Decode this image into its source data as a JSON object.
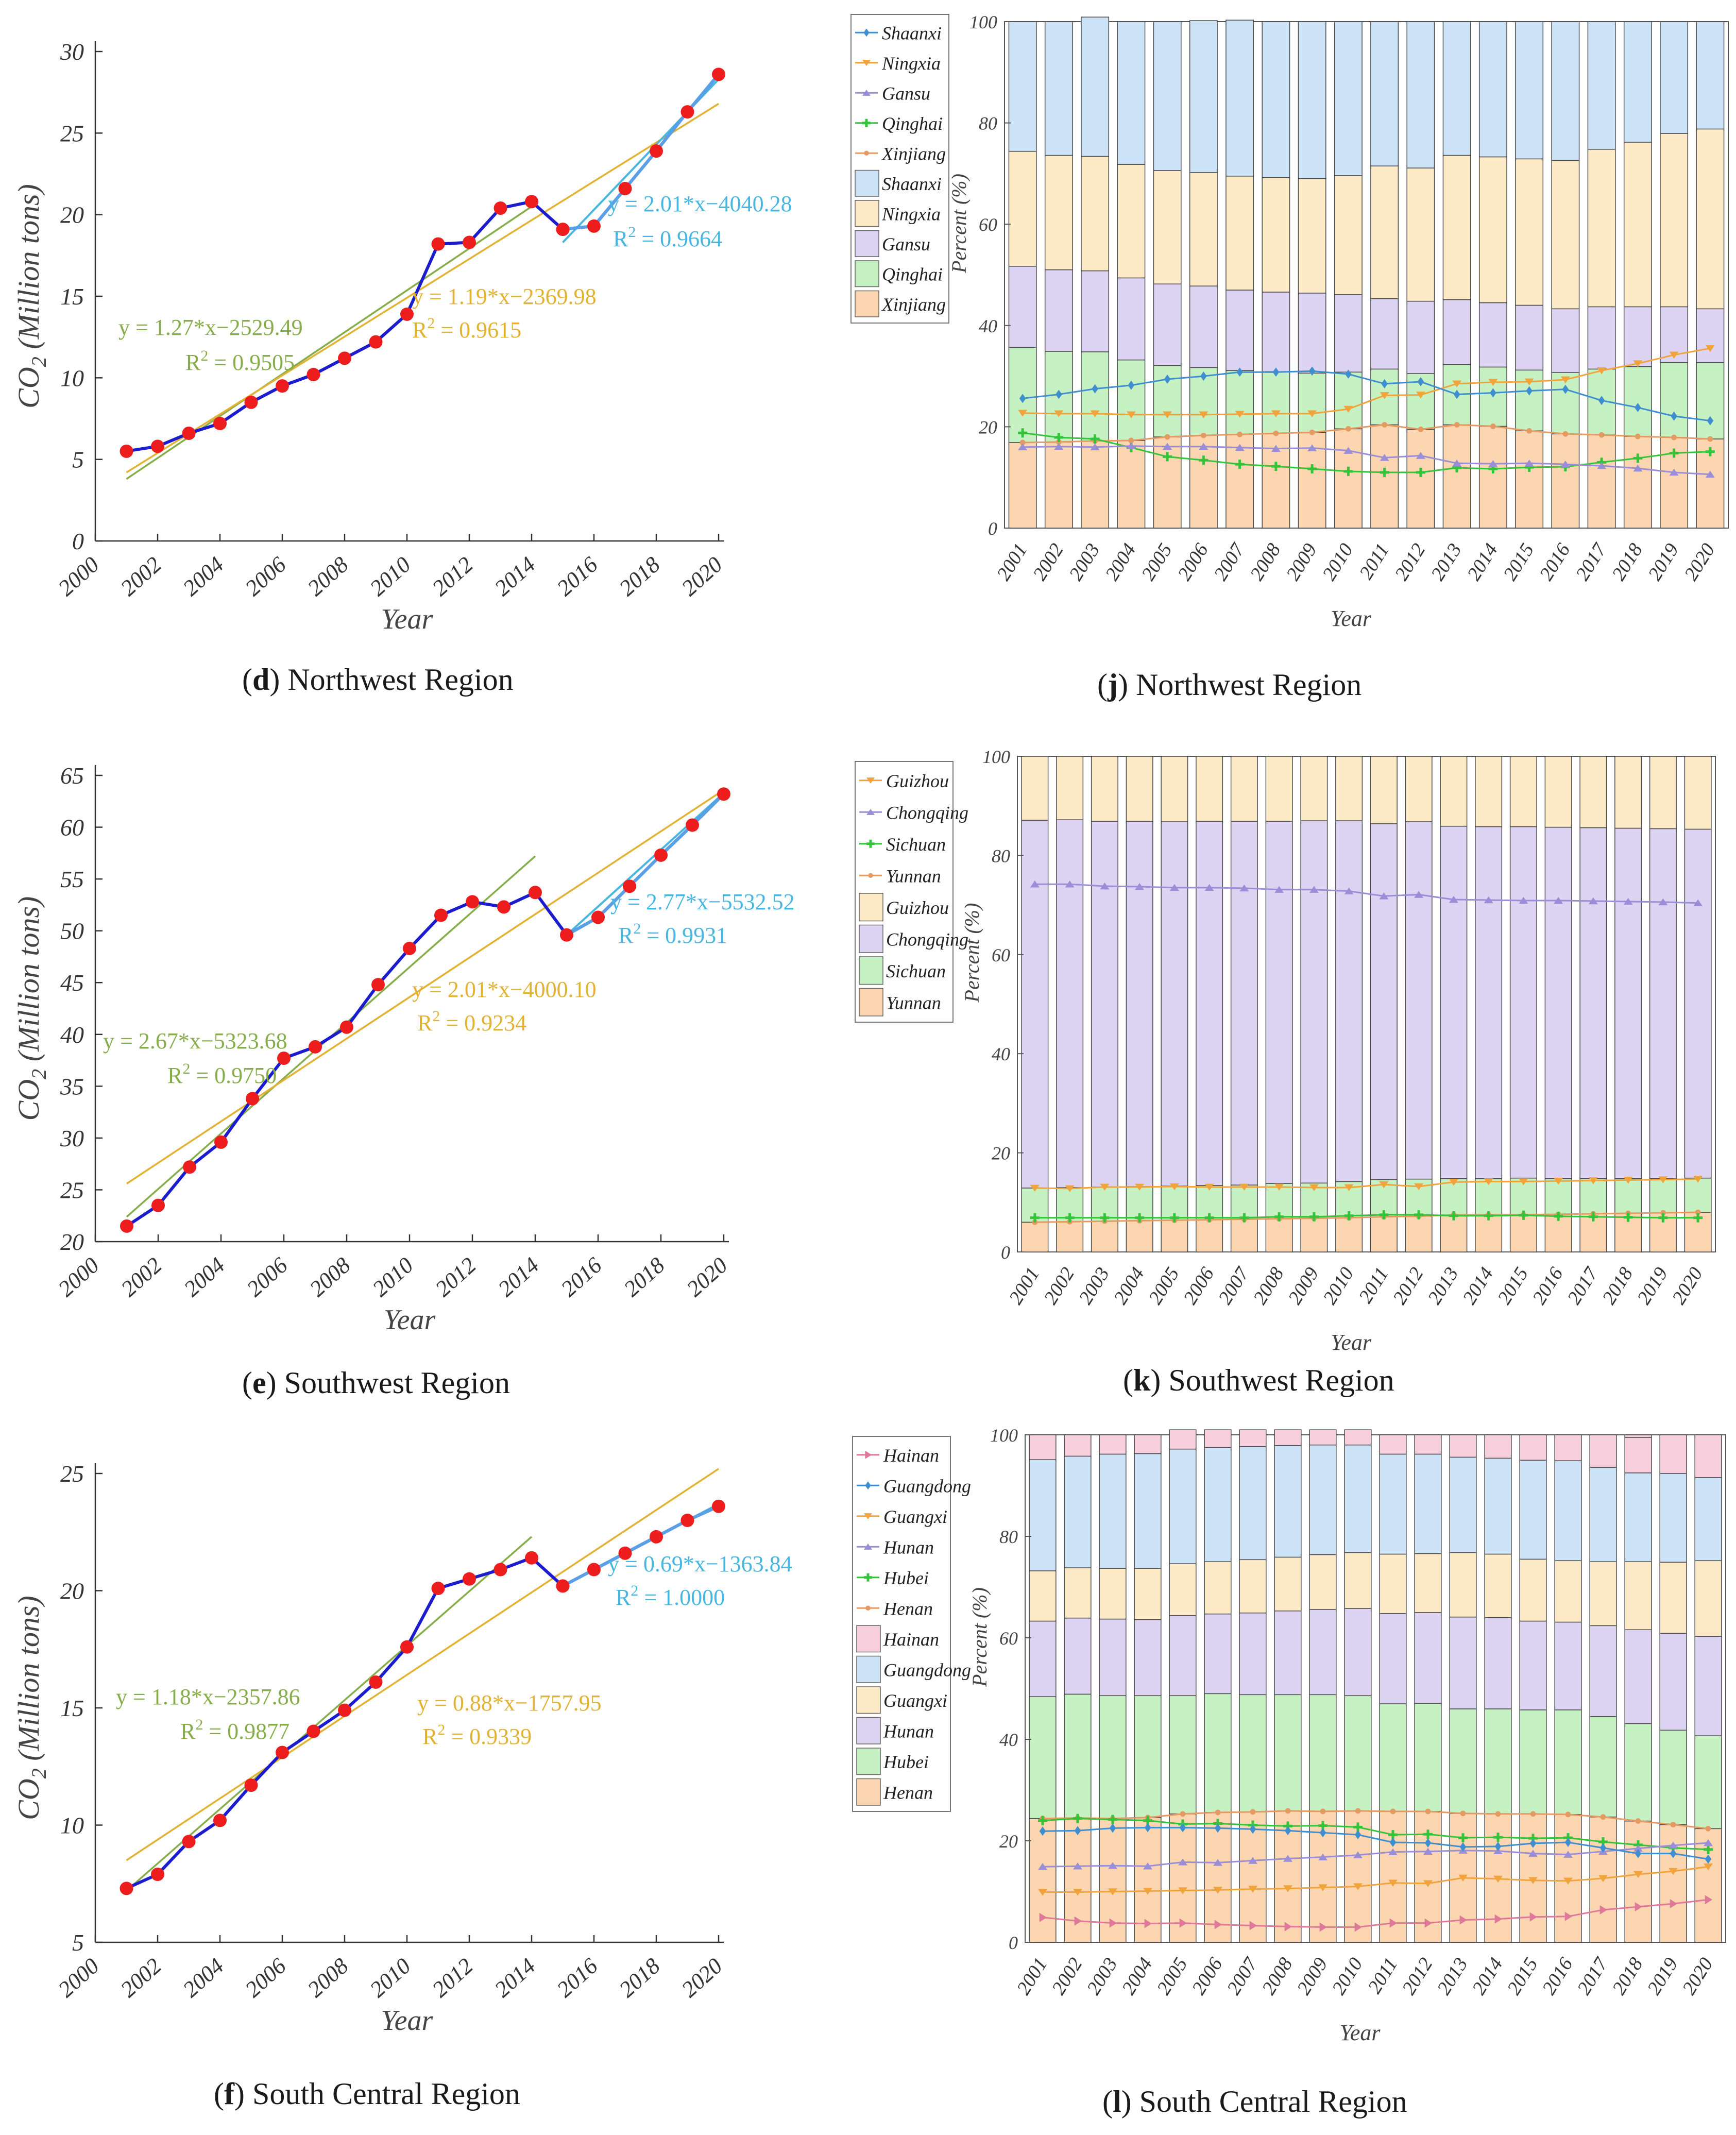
{
  "chart_data": [
    {
      "id": "d",
      "type": "line",
      "caption_letter": "d",
      "caption_text": " Northwest Region",
      "xlabel": "Year",
      "ylabel": "CO",
      "ylabel_sub": "2",
      "ylabel_unit": " (Million tons)",
      "xlim": [
        2000,
        2020
      ],
      "ylim": [
        0,
        30
      ],
      "xticks": [
        2000,
        2002,
        2004,
        2006,
        2008,
        2010,
        2012,
        2014,
        2016,
        2018,
        2020
      ],
      "yticks": [
        0,
        5,
        10,
        15,
        20,
        25,
        30
      ],
      "x": [
        2001,
        2002,
        2003,
        2004,
        2005,
        2006,
        2007,
        2008,
        2009,
        2010,
        2011,
        2012,
        2013,
        2014,
        2015,
        2016,
        2017,
        2018,
        2019,
        2020
      ],
      "values": [
        5.5,
        5.8,
        6.6,
        7.2,
        8.5,
        9.5,
        10.2,
        11.2,
        12.2,
        13.9,
        18.2,
        18.3,
        20.4,
        20.8,
        19.1,
        19.3,
        21.6,
        23.9,
        26.3,
        28.6
      ],
      "fits": [
        {
          "label": "y = 1.27*x−2529.49",
          "r2": "R",
          "r2_val": " = 0.9505",
          "color": "#86ad4a",
          "x": [
            2001,
            2014
          ],
          "y": [
            3.8,
            20.5
          ]
        },
        {
          "label": "y = 1.19*x−2369.98",
          "r2": "R",
          "r2_val": " = 0.9615",
          "color": "#e2b232",
          "x": [
            2001,
            2020
          ],
          "y": [
            4.2,
            26.8
          ]
        },
        {
          "label": "y = 2.01*x−4040.28",
          "r2": "R",
          "r2_val": " = 0.9664",
          "color": "#47b6e0",
          "x": [
            2015,
            2020
          ],
          "y": [
            18.3,
            28.3
          ]
        }
      ]
    },
    {
      "id": "e",
      "type": "line",
      "caption_letter": "e",
      "caption_text": " Southwest Region",
      "xlabel": "Year",
      "ylabel": "CO",
      "ylabel_sub": "2",
      "ylabel_unit": " (Million tons)",
      "xlim": [
        2000,
        2020
      ],
      "ylim": [
        20,
        65
      ],
      "xticks": [
        2000,
        2002,
        2004,
        2006,
        2008,
        2010,
        2012,
        2014,
        2016,
        2018,
        2020
      ],
      "yticks": [
        20,
        25,
        30,
        35,
        40,
        45,
        50,
        55,
        60,
        65
      ],
      "x": [
        2001,
        2002,
        2003,
        2004,
        2005,
        2006,
        2007,
        2008,
        2009,
        2010,
        2011,
        2012,
        2013,
        2014,
        2015,
        2016,
        2017,
        2018,
        2019,
        2020
      ],
      "values": [
        21.5,
        23.5,
        27.2,
        29.6,
        33.8,
        37.7,
        38.8,
        40.7,
        44.8,
        48.3,
        51.5,
        52.8,
        52.3,
        53.7,
        49.6,
        51.3,
        54.3,
        57.3,
        60.2,
        63.2
      ],
      "fits": [
        {
          "label": "y = 2.67*x−5323.68",
          "r2": "R",
          "r2_val": " = 0.9750",
          "color": "#86ad4a",
          "x": [
            2001,
            2014
          ],
          "y": [
            22.4,
            57.2
          ]
        },
        {
          "label": "y = 2.01*x−4000.10",
          "r2": "R",
          "r2_val": " = 0.9234",
          "color": "#e2b232",
          "x": [
            2001,
            2020
          ],
          "y": [
            25.6,
            63.6
          ]
        },
        {
          "label": "y = 2.77*x−5532.52",
          "r2": "R",
          "r2_val": " = 0.9931",
          "color": "#47b6e0",
          "x": [
            2015,
            2020
          ],
          "y": [
            49.6,
            63.3
          ]
        }
      ]
    },
    {
      "id": "f",
      "type": "line",
      "caption_letter": "f",
      "caption_text": " South Central Region",
      "xlabel": "Year",
      "ylabel": "CO",
      "ylabel_sub": "2",
      "ylabel_unit": " (Million tons)",
      "xlim": [
        2000,
        2020
      ],
      "ylim": [
        5,
        25
      ],
      "xticks": [
        2000,
        2002,
        2004,
        2006,
        2008,
        2010,
        2012,
        2014,
        2016,
        2018,
        2020
      ],
      "yticks": [
        5,
        10,
        15,
        20,
        25
      ],
      "x": [
        2001,
        2002,
        2003,
        2004,
        2005,
        2006,
        2007,
        2008,
        2009,
        2010,
        2011,
        2012,
        2013,
        2014,
        2015,
        2016,
        2017,
        2018,
        2019,
        2020
      ],
      "values": [
        7.3,
        7.9,
        9.3,
        10.2,
        11.7,
        13.1,
        14.0,
        14.9,
        16.1,
        17.6,
        20.1,
        20.5,
        20.9,
        21.4,
        20.2,
        20.9,
        21.6,
        22.3,
        23.0,
        23.6
      ],
      "fits": [
        {
          "label": "y = 1.18*x−2357.86",
          "r2": "R",
          "r2_val": " = 0.9877",
          "color": "#86ad4a",
          "x": [
            2001,
            2014
          ],
          "y": [
            7.2,
            22.3
          ]
        },
        {
          "label": "y = 0.88*x−1757.95",
          "r2": "R",
          "r2_val": " = 0.9339",
          "color": "#e2b232",
          "x": [
            2001,
            2020
          ],
          "y": [
            8.5,
            25.2
          ]
        },
        {
          "label": "y = 0.69*x−1363.84",
          "r2": "R",
          "r2_val": " = 1.0000",
          "color": "#47b6e0",
          "x": [
            2015,
            2020
          ],
          "y": [
            20.2,
            23.7
          ]
        }
      ]
    },
    {
      "id": "j",
      "type": "bar",
      "stacked": true,
      "caption_letter": "j",
      "caption_text": " Northwest Region",
      "xlabel": "Year",
      "ylabel": "Percent (%)",
      "ylim": [
        0,
        100
      ],
      "yticks": [
        0,
        20,
        40,
        60,
        80,
        100
      ],
      "categories": [
        "2001",
        "2002",
        "2003",
        "2004",
        "2005",
        "2006",
        "2007",
        "2008",
        "2009",
        "2010",
        "2011",
        "2012",
        "2013",
        "2014",
        "2015",
        "2016",
        "2017",
        "2018",
        "2019",
        "2020"
      ],
      "series": [
        {
          "name": "Xinjiang",
          "color": "#fbd6b1",
          "line_color": "#e59a63",
          "values": [
            16.9,
            17.0,
            17.2,
            17.3,
            18.0,
            18.3,
            18.5,
            18.7,
            18.9,
            19.6,
            20.4,
            19.5,
            20.4,
            20.1,
            19.2,
            18.6,
            18.4,
            18.1,
            17.9,
            17.6
          ]
        },
        {
          "name": "Qinghai",
          "color": "#c6f1c3",
          "line_color": "#34c43a",
          "values": [
            18.8,
            17.9,
            17.6,
            15.9,
            14.1,
            13.4,
            12.6,
            12.2,
            11.7,
            11.2,
            11.0,
            11.0,
            11.9,
            11.7,
            12.0,
            12.1,
            13.0,
            13.8,
            14.8,
            15.1
          ]
        },
        {
          "name": "Gansu",
          "color": "#ddd3f2",
          "line_color": "#9a8ed8",
          "values": [
            16.0,
            16.1,
            16.0,
            16.2,
            16.1,
            16.1,
            15.9,
            15.7,
            15.8,
            15.3,
            13.9,
            14.3,
            12.8,
            12.7,
            12.8,
            12.6,
            12.3,
            11.8,
            11.0,
            10.6
          ]
        },
        {
          "name": "Ningxia",
          "color": "#fdeac7",
          "line_color": "#f1a43b",
          "values": [
            22.7,
            22.6,
            22.6,
            22.4,
            22.4,
            22.4,
            22.5,
            22.6,
            22.6,
            23.5,
            26.2,
            26.3,
            28.5,
            28.8,
            28.9,
            29.3,
            31.1,
            32.5,
            34.2,
            35.5
          ]
        },
        {
          "name": "Shaanxi",
          "color": "#cde3f7",
          "line_color": "#3f8fd0",
          "values": [
            25.6,
            26.4,
            27.5,
            28.2,
            29.4,
            30.0,
            30.8,
            30.8,
            31.0,
            30.4,
            28.5,
            28.9,
            26.4,
            26.7,
            27.1,
            27.4,
            25.2,
            23.8,
            22.1,
            21.2
          ]
        }
      ],
      "legend_order": [
        "Shaanxi",
        "Ningxia",
        "Gansu",
        "Qinghai",
        "Xinjiang"
      ]
    },
    {
      "id": "k",
      "type": "bar",
      "stacked": true,
      "caption_letter": "k",
      "caption_text": " Southwest Region",
      "xlabel": "Year",
      "ylabel": "Percent (%)",
      "ylim": [
        0,
        100
      ],
      "yticks": [
        0,
        20,
        40,
        60,
        80,
        100
      ],
      "categories": [
        "2001",
        "2002",
        "2003",
        "2004",
        "2005",
        "2006",
        "2007",
        "2008",
        "2009",
        "2010",
        "2011",
        "2012",
        "2013",
        "2014",
        "2015",
        "2016",
        "2017",
        "2018",
        "2019",
        "2020"
      ],
      "series": [
        {
          "name": "Yunnan",
          "color": "#fbd6b1",
          "line_color": "#e59a63",
          "values": [
            6.0,
            6.1,
            6.2,
            6.3,
            6.4,
            6.5,
            6.6,
            6.7,
            6.8,
            6.9,
            7.1,
            7.2,
            7.5,
            7.5,
            7.5,
            7.6,
            7.7,
            7.8,
            7.9,
            8.0
          ]
        },
        {
          "name": "Sichuan",
          "color": "#c6f1c3",
          "line_color": "#34c43a",
          "values": [
            6.9,
            6.9,
            6.9,
            6.9,
            6.9,
            6.9,
            6.9,
            7.1,
            7.1,
            7.3,
            7.5,
            7.5,
            7.3,
            7.3,
            7.4,
            7.2,
            7.1,
            7.0,
            6.9,
            6.9
          ]
        },
        {
          "name": "Chongqing",
          "color": "#ddd3f2",
          "line_color": "#9a8ed8",
          "values": [
            74.2,
            74.2,
            73.8,
            73.7,
            73.5,
            73.5,
            73.4,
            73.1,
            73.1,
            72.8,
            71.8,
            72.1,
            71.1,
            71.0,
            70.9,
            70.9,
            70.8,
            70.7,
            70.6,
            70.4
          ]
        },
        {
          "name": "Guizhou",
          "color": "#fdeac7",
          "line_color": "#f1a43b",
          "values": [
            12.9,
            12.8,
            13.1,
            13.1,
            13.2,
            13.1,
            13.1,
            13.1,
            13.0,
            13.0,
            13.6,
            13.2,
            14.1,
            14.2,
            14.2,
            14.3,
            14.4,
            14.5,
            14.6,
            14.7
          ]
        }
      ],
      "legend_order": [
        "Guizhou",
        "Chongqing",
        "Sichuan",
        "Yunnan"
      ]
    },
    {
      "id": "l",
      "type": "bar",
      "stacked": true,
      "caption_letter": "l",
      "caption_text": " South Central Region",
      "xlabel": "Year",
      "ylabel": "Percent (%)",
      "ylim": [
        0,
        100
      ],
      "yticks": [
        0,
        20,
        40,
        60,
        80,
        100
      ],
      "categories": [
        "2001",
        "2002",
        "2003",
        "2004",
        "2005",
        "2006",
        "2007",
        "2008",
        "2009",
        "2010",
        "2011",
        "2012",
        "2013",
        "2014",
        "2015",
        "2016",
        "2017",
        "2018",
        "2019",
        "2020"
      ],
      "series": [
        {
          "name": "Henan",
          "color": "#fbd6b1",
          "line_color": "#e59a63",
          "values": [
            24.4,
            24.5,
            24.4,
            24.6,
            25.3,
            25.6,
            25.7,
            25.9,
            25.8,
            25.9,
            25.8,
            25.8,
            25.4,
            25.3,
            25.3,
            25.2,
            24.7,
            23.9,
            23.2,
            22.4
          ]
        },
        {
          "name": "Hubei",
          "color": "#c6f1c3",
          "line_color": "#34c43a",
          "values": [
            24.0,
            24.4,
            24.2,
            24.0,
            23.3,
            23.4,
            23.1,
            22.9,
            23.0,
            22.7,
            21.2,
            21.3,
            20.6,
            20.7,
            20.5,
            20.6,
            19.8,
            19.2,
            18.6,
            18.3
          ]
        },
        {
          "name": "Hunan",
          "color": "#ddd3f2",
          "line_color": "#9a8ed8",
          "values": [
            14.9,
            15.0,
            15.1,
            15.0,
            15.8,
            15.7,
            16.1,
            16.5,
            16.8,
            17.2,
            17.8,
            17.9,
            18.1,
            18.0,
            17.5,
            17.3,
            17.9,
            18.5,
            19.1,
            19.6
          ]
        },
        {
          "name": "Guangxi",
          "color": "#fdeac7",
          "line_color": "#f1a43b",
          "values": [
            9.9,
            9.9,
            10.0,
            10.1,
            10.2,
            10.3,
            10.5,
            10.6,
            10.8,
            11.0,
            11.7,
            11.6,
            12.7,
            12.5,
            12.2,
            12.1,
            12.6,
            13.4,
            14.0,
            14.9
          ]
        },
        {
          "name": "Guangdong",
          "color": "#cde3f7",
          "line_color": "#3f8fd0",
          "values": [
            21.9,
            22.0,
            22.5,
            22.6,
            22.6,
            22.5,
            22.3,
            22.0,
            21.6,
            21.2,
            19.7,
            19.6,
            18.8,
            18.9,
            19.5,
            19.7,
            18.6,
            17.5,
            17.5,
            16.4
          ]
        },
        {
          "name": "Hainan",
          "color": "#f8d0dd",
          "line_color": "#e0789a",
          "values": [
            4.9,
            4.2,
            3.8,
            3.7,
            3.8,
            3.5,
            3.3,
            3.1,
            3.0,
            3.0,
            3.8,
            3.8,
            4.4,
            4.6,
            5.0,
            5.1,
            6.4,
            7.0,
            7.6,
            8.4
          ]
        }
      ],
      "legend_order": [
        "Hainan",
        "Guangdong",
        "Guangxi",
        "Hunan",
        "Hubei",
        "Henan"
      ]
    }
  ]
}
